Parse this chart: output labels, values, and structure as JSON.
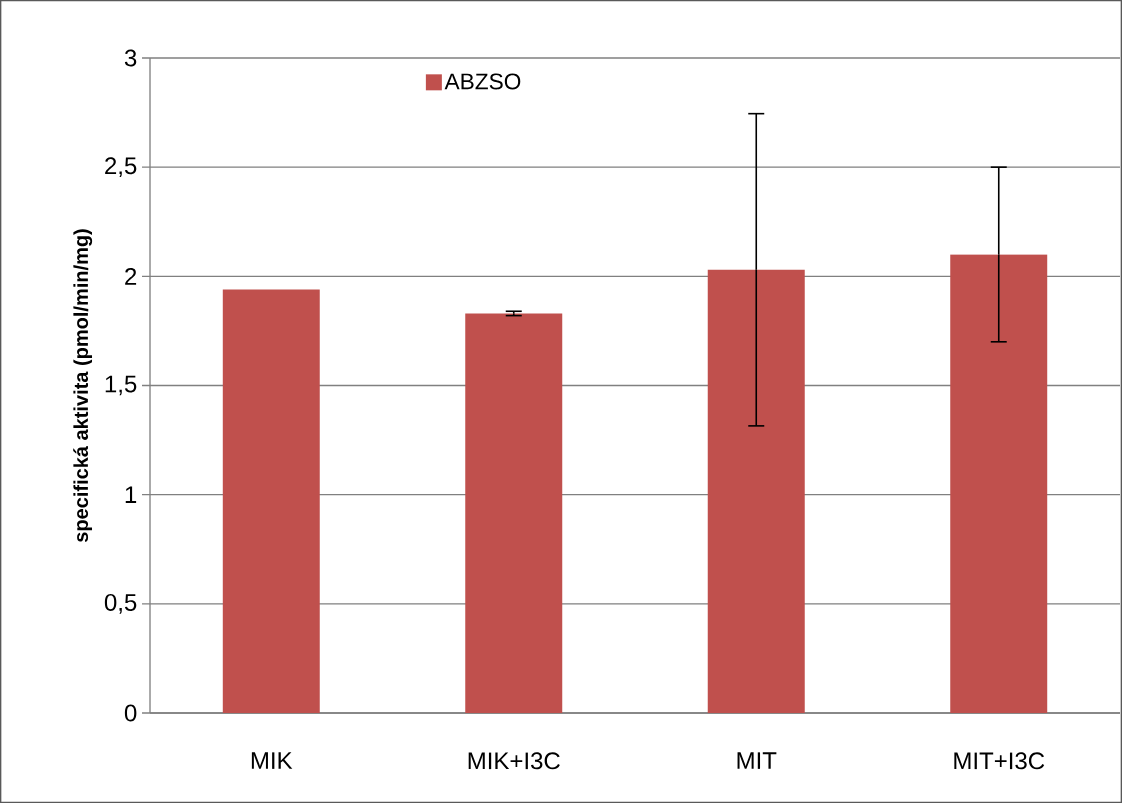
{
  "chart_data": {
    "type": "bar",
    "ylabel": "specifická aktivita (pmol/min/mg)",
    "categories": [
      "MIK",
      "MIK+I3C",
      "MIT",
      "MIT+I3C"
    ],
    "series": [
      {
        "name": "ABZSO",
        "color": "#c0504d",
        "values": [
          1.94,
          1.83,
          2.03,
          2.1
        ],
        "errors": [
          null,
          0.01,
          0.715,
          0.4
        ]
      }
    ],
    "ylim": [
      0,
      3
    ],
    "yticks": [
      0,
      {
        "value": 0.5,
        "label": "0,5"
      },
      1,
      {
        "value": 1.5,
        "label": "1,5"
      },
      2,
      {
        "value": 2.5,
        "label": "2,5"
      },
      3
    ],
    "grid": "y",
    "legend": "top"
  }
}
